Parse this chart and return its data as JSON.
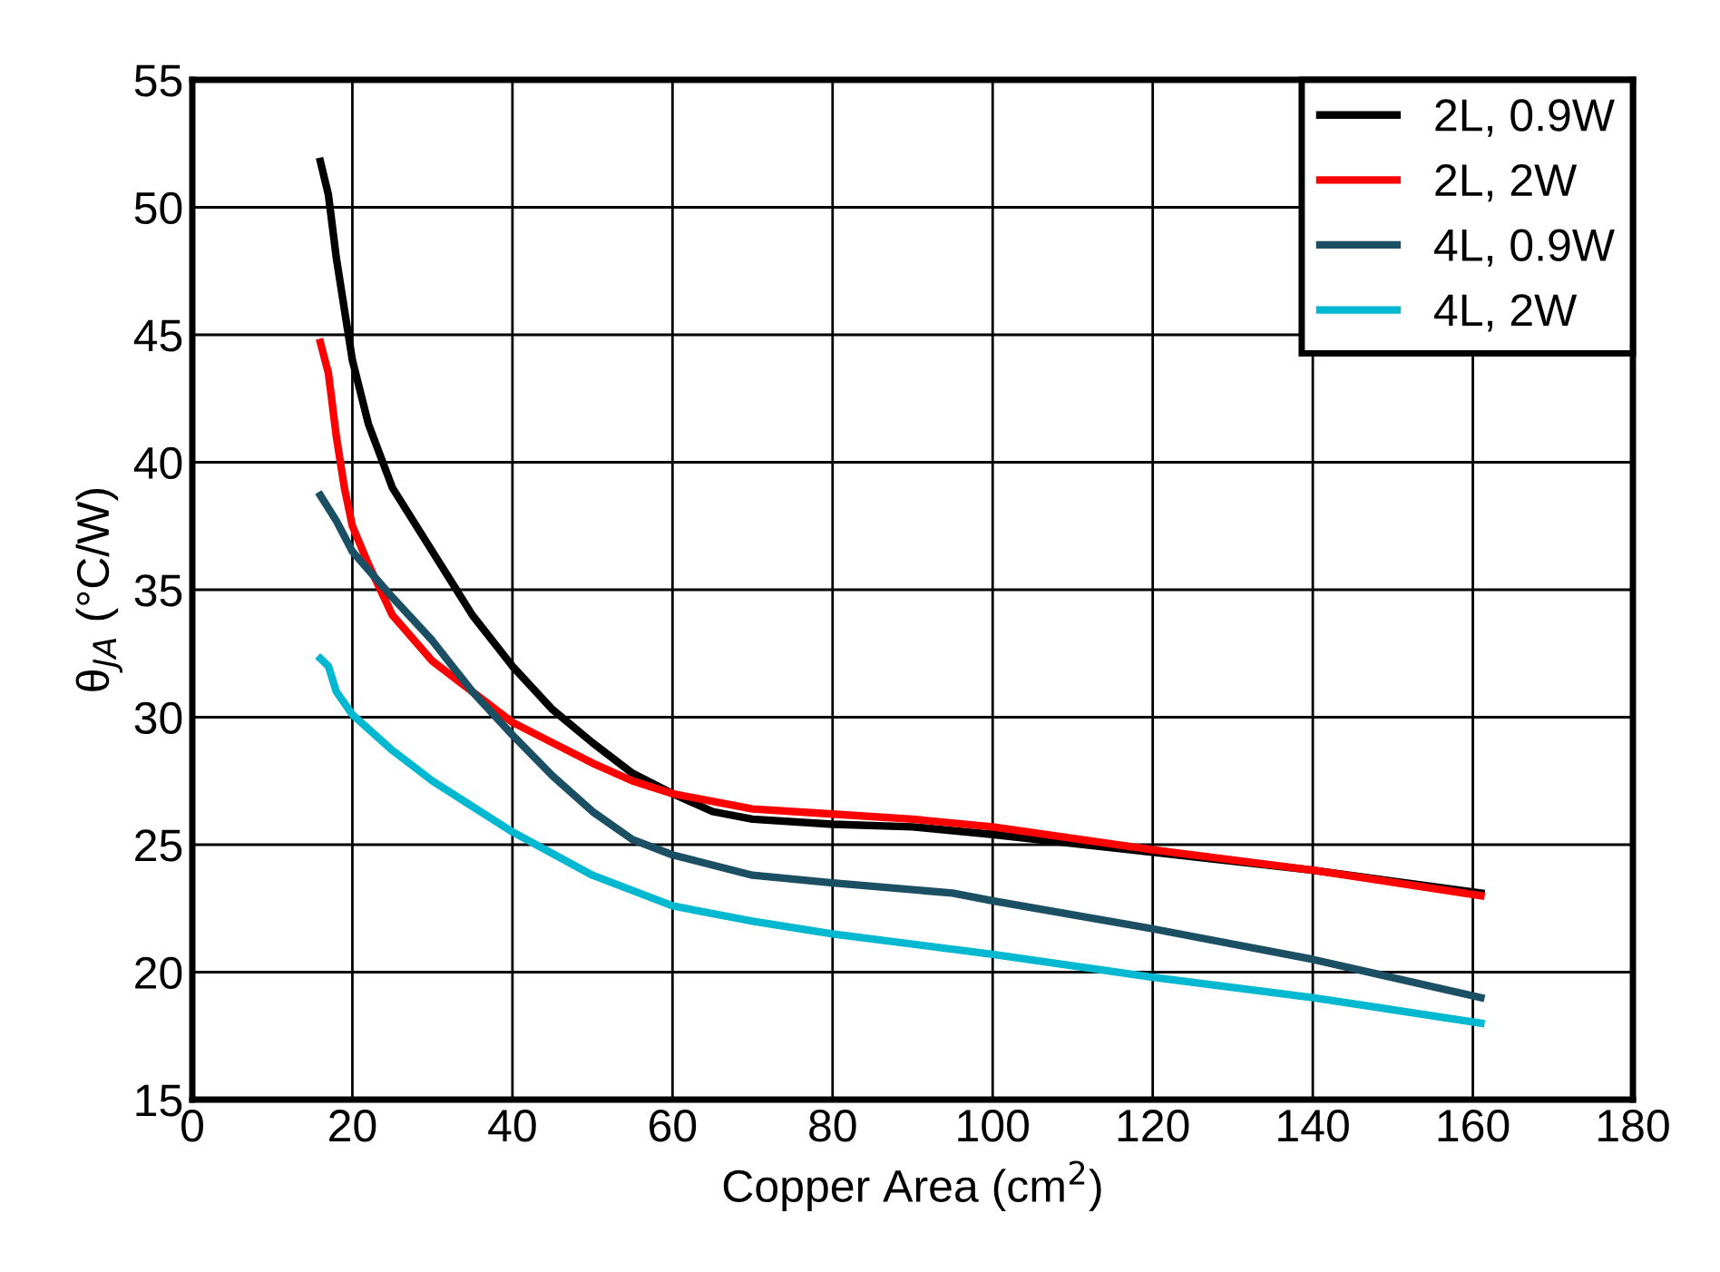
{
  "chart_data": {
    "type": "line",
    "xlabel": "Copper Area (cm$^{2}$)",
    "ylabel": "θ$_{JA}$ (°C/W)",
    "xlim": [
      0,
      180
    ],
    "xticks": [
      0,
      20,
      40,
      60,
      80,
      100,
      120,
      140,
      160,
      180
    ],
    "ylim": [
      15,
      55
    ],
    "yticks": [
      15,
      20,
      25,
      30,
      35,
      40,
      45,
      50,
      55
    ],
    "grid": true,
    "legend": "top right",
    "line_style": "solid",
    "series": [
      {
        "name": "2L, 0.9W",
        "color": "#000000",
        "x": [
          16,
          17,
          18,
          20,
          22,
          25,
          30,
          35,
          40,
          45,
          50,
          55,
          60,
          65,
          70,
          80,
          90,
          100,
          120,
          140,
          161
        ],
        "values": [
          51.8,
          50.5,
          48,
          44,
          41.5,
          39,
          36.5,
          34,
          32,
          30.3,
          29,
          27.8,
          27,
          26.3,
          26,
          25.8,
          25.7,
          25.4,
          24.7,
          24,
          23.1
        ]
      },
      {
        "name": "2L, 2W",
        "color": "#ff0000",
        "x": [
          16,
          17,
          18,
          19,
          20,
          22,
          25,
          30,
          35,
          40,
          45,
          50,
          55,
          60,
          70,
          80,
          90,
          100,
          120,
          140,
          161
        ],
        "values": [
          44.7,
          43.5,
          41,
          39,
          37.5,
          36,
          34,
          32.2,
          31,
          29.8,
          29,
          28.2,
          27.5,
          27,
          26.4,
          26.2,
          26,
          25.7,
          24.8,
          24,
          23
        ]
      },
      {
        "name": "4L, 0.9W",
        "color": "#1b4f63",
        "x": [
          16,
          18,
          20,
          25,
          30,
          35,
          40,
          45,
          50,
          55,
          60,
          70,
          80,
          95,
          100,
          120,
          140,
          161
        ],
        "values": [
          38.7,
          37.7,
          36.5,
          34.7,
          33,
          31,
          29.3,
          27.7,
          26.3,
          25.2,
          24.6,
          23.8,
          23.5,
          23.1,
          22.8,
          21.7,
          20.5,
          19
        ]
      },
      {
        "name": "4L, 2W",
        "color": "#00b8d0",
        "x": [
          16,
          17,
          18,
          20,
          25,
          30,
          40,
          50,
          60,
          70,
          80,
          100,
          120,
          140,
          161
        ],
        "values": [
          32.3,
          32,
          31,
          30.1,
          28.7,
          27.5,
          25.5,
          23.8,
          22.6,
          22,
          21.5,
          20.7,
          19.8,
          19,
          18
        ]
      }
    ]
  }
}
